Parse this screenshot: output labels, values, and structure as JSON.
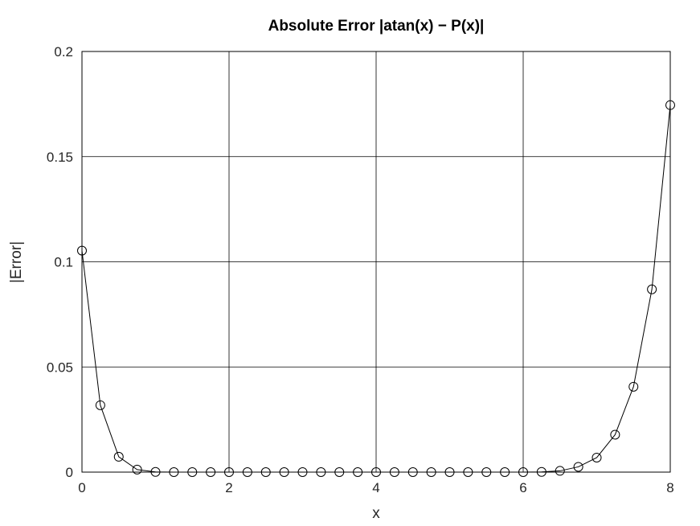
{
  "chart_data": {
    "type": "line",
    "title": "Absolute Error |atan(x) − P(x)|",
    "xlabel": "x",
    "ylabel": "|Error|",
    "xlim": [
      0,
      8
    ],
    "ylim": [
      0,
      0.2
    ],
    "xticks": [
      0,
      2,
      4,
      6,
      8
    ],
    "xtick_labels": [
      "0",
      "2",
      "4",
      "6",
      "8"
    ],
    "yticks": [
      0,
      0.05,
      0.1,
      0.15,
      0.2
    ],
    "ytick_labels": [
      "0",
      "0.05",
      "0.1",
      "0.15",
      "0.2"
    ],
    "grid": true,
    "marker": "circle",
    "line_color": "#000000",
    "series": [
      {
        "x": [
          0,
          0.25,
          0.5,
          0.75,
          1,
          1.25,
          1.5,
          1.75,
          2,
          2.25,
          2.5,
          2.75,
          3,
          3.25,
          3.5,
          3.75,
          4,
          4.25,
          4.5,
          4.75,
          5,
          5.25,
          5.5,
          5.75,
          6,
          6.25,
          6.5,
          6.75,
          7,
          7.25,
          7.5,
          7.75,
          8
        ],
        "values": [
          0.1053,
          0.0318,
          0.0073,
          0.0012,
          0.0001,
          0,
          0,
          0,
          0,
          0,
          0,
          0,
          0,
          0,
          0,
          0,
          0,
          0,
          0,
          0,
          0,
          0,
          0,
          0,
          0,
          0.0001,
          0.0006,
          0.0025,
          0.0069,
          0.0178,
          0.0406,
          0.0869,
          0.1745
        ]
      }
    ]
  }
}
